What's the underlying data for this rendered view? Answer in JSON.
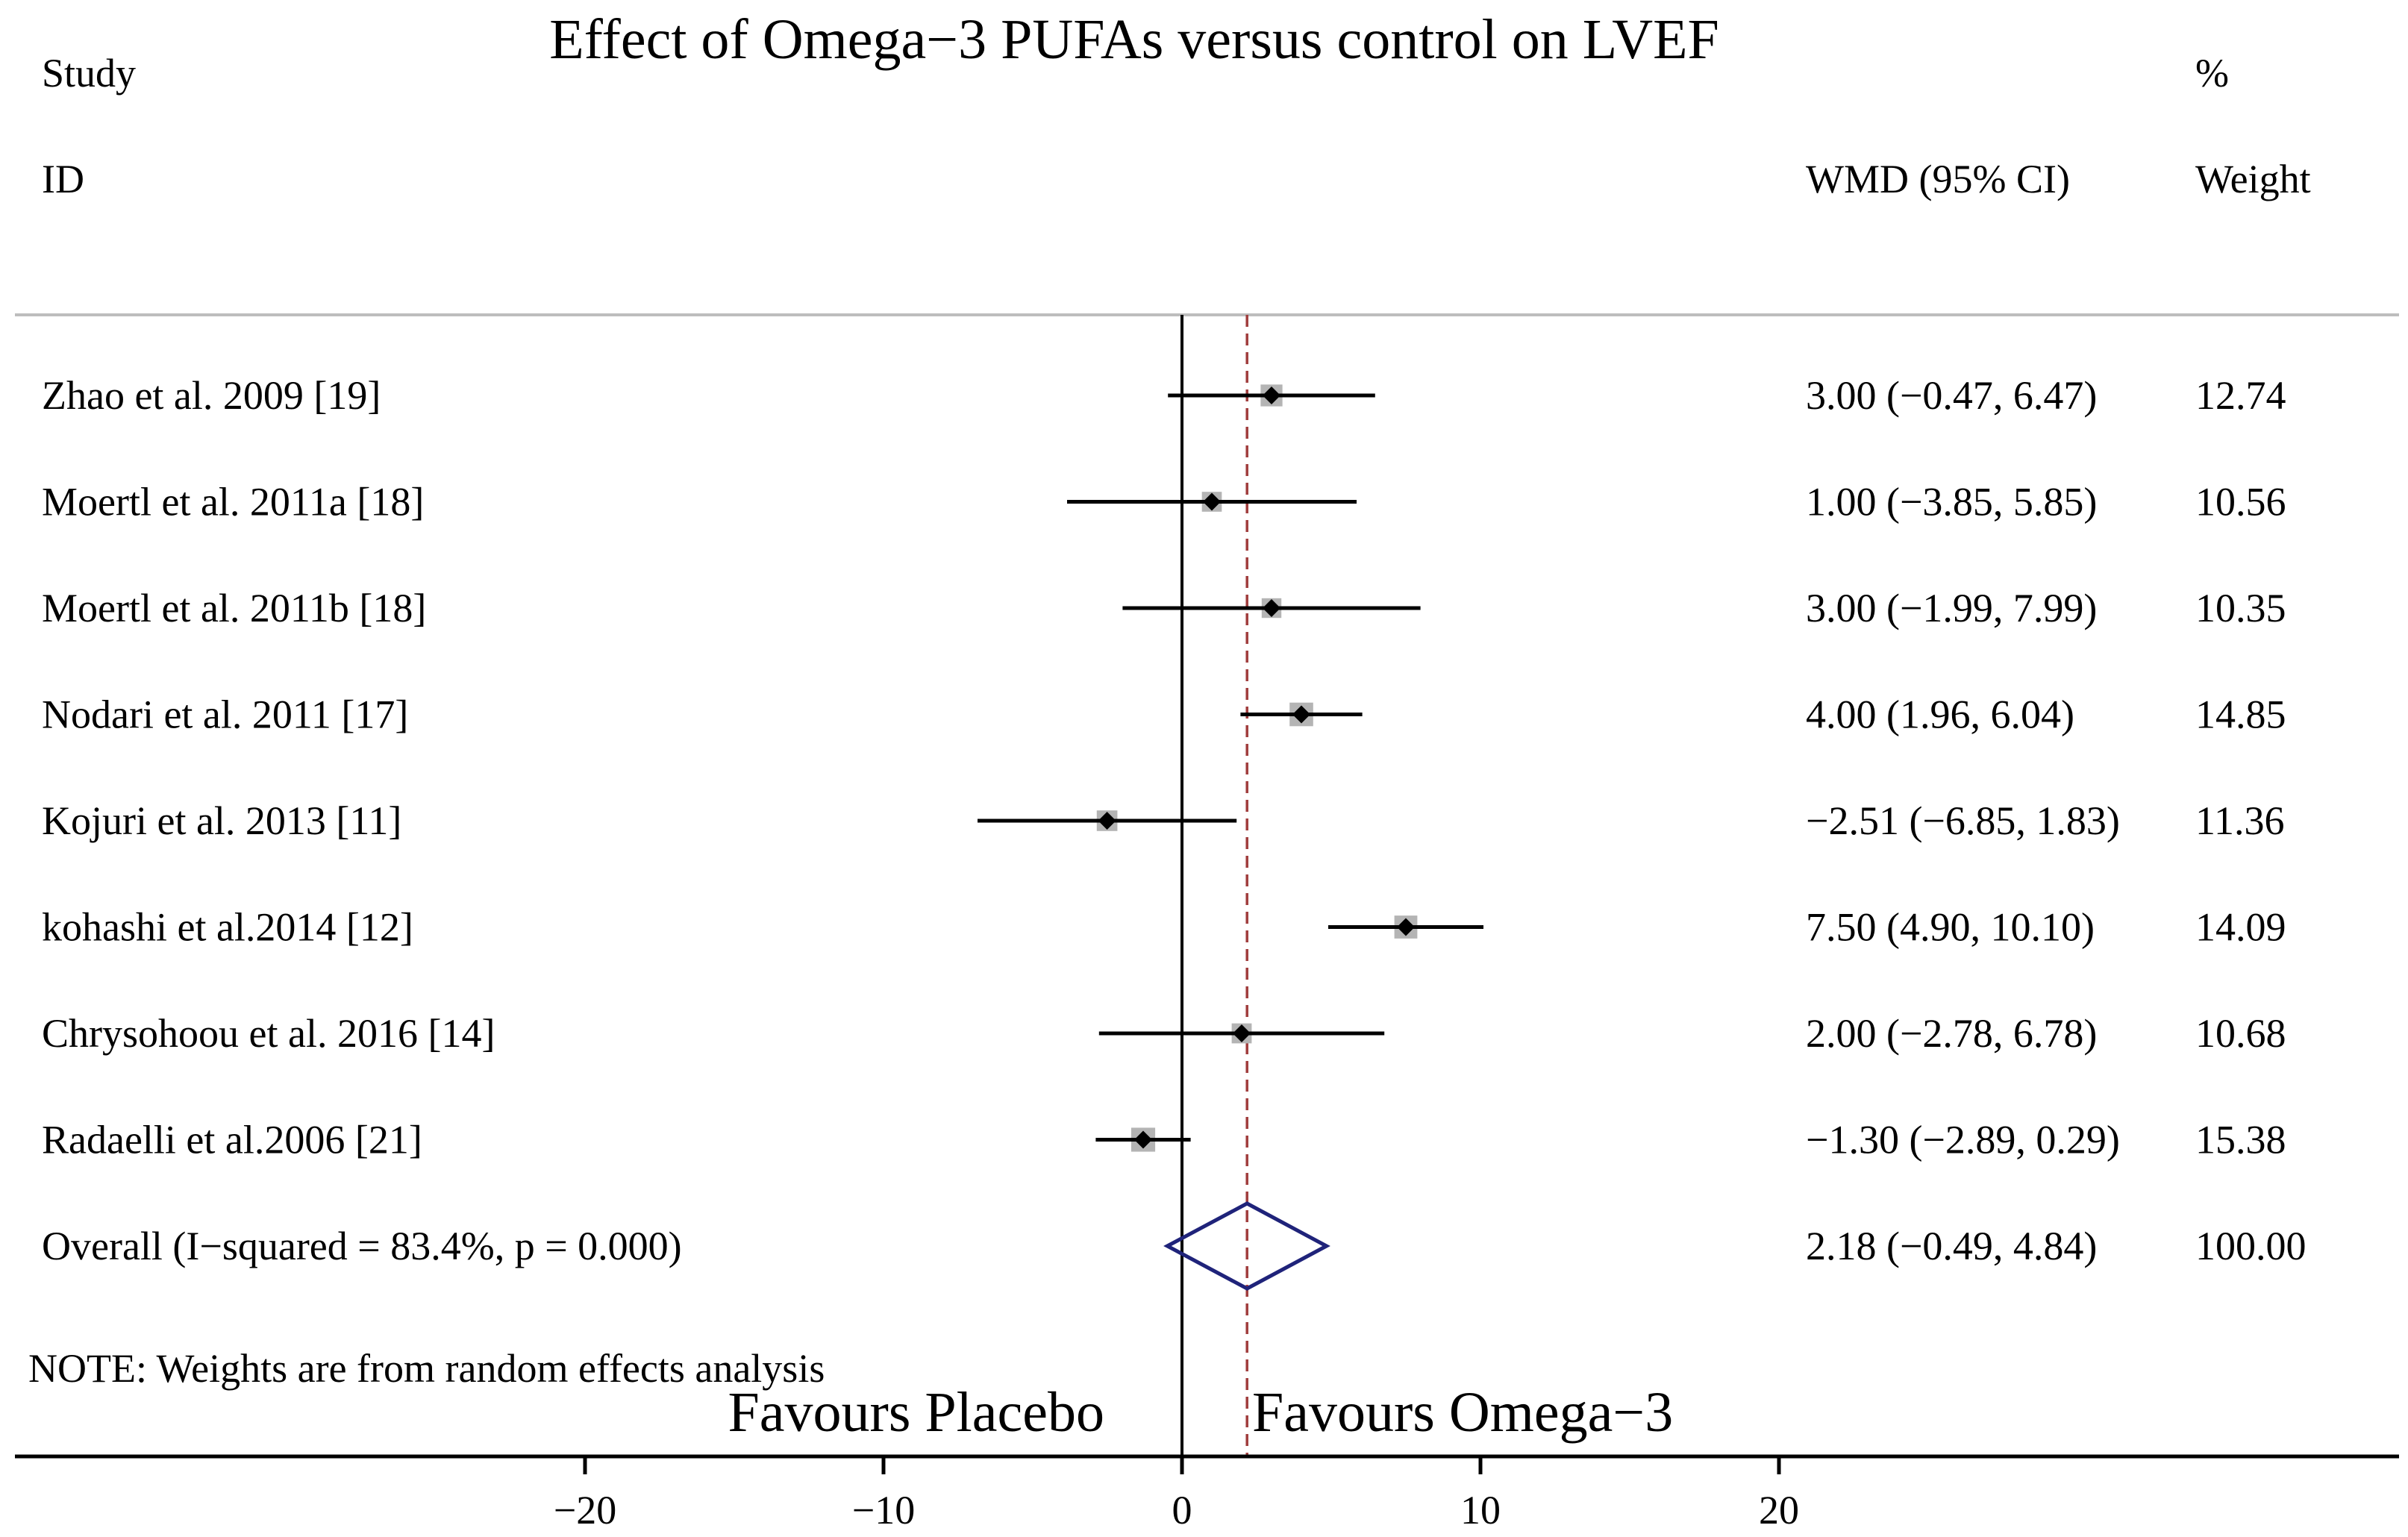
{
  "chart_data": {
    "type": "forest",
    "title": "Effect of Omega−3 PUFAs versus control on LVEF",
    "header": {
      "study_line1": "Study",
      "study_line2": "ID",
      "effect_label": "WMD (95% CI)",
      "weight_line1": "%",
      "weight_line2": "Weight"
    },
    "studies": [
      {
        "label": "Zhao et al. 2009 [19]",
        "estimate": 3.0,
        "lower": -0.47,
        "upper": 6.47,
        "ci_text": "3.00 (−0.47, 6.47)",
        "weight": 12.74,
        "weight_text": "12.74"
      },
      {
        "label": "Moertl et al. 2011a [18]",
        "estimate": 1.0,
        "lower": -3.85,
        "upper": 5.85,
        "ci_text": "1.00 (−3.85, 5.85)",
        "weight": 10.56,
        "weight_text": "10.56"
      },
      {
        "label": "Moertl et al. 2011b [18]",
        "estimate": 3.0,
        "lower": -1.99,
        "upper": 7.99,
        "ci_text": "3.00 (−1.99, 7.99)",
        "weight": 10.35,
        "weight_text": "10.35"
      },
      {
        "label": "Nodari et al. 2011 [17]",
        "estimate": 4.0,
        "lower": 1.96,
        "upper": 6.04,
        "ci_text": "4.00 (1.96, 6.04)",
        "weight": 14.85,
        "weight_text": "14.85"
      },
      {
        "label": "Kojuri et al. 2013 [11]",
        "estimate": -2.51,
        "lower": -6.85,
        "upper": 1.83,
        "ci_text": "−2.51 (−6.85, 1.83)",
        "weight": 11.36,
        "weight_text": "11.36"
      },
      {
        "label": "kohashi et al.2014 [12]",
        "estimate": 7.5,
        "lower": 4.9,
        "upper": 10.1,
        "ci_text": "7.50 (4.90, 10.10)",
        "weight": 14.09,
        "weight_text": "14.09"
      },
      {
        "label": "Chrysohoou et al. 2016 [14]",
        "estimate": 2.0,
        "lower": -2.78,
        "upper": 6.78,
        "ci_text": "2.00 (−2.78, 6.78)",
        "weight": 10.68,
        "weight_text": "10.68"
      },
      {
        "label": "Radaelli et al.2006 [21]",
        "estimate": -1.3,
        "lower": -2.89,
        "upper": 0.29,
        "ci_text": "−1.30 (−2.89, 0.29)",
        "weight": 15.38,
        "weight_text": "15.38"
      }
    ],
    "overall": {
      "label": "Overall  (I−squared = 83.4%, p = 0.000)",
      "estimate": 2.18,
      "lower": -0.49,
      "upper": 4.84,
      "ci_text": "2.18 (−0.49, 4.84)",
      "weight_text": "100.00"
    },
    "note": "NOTE: Weights are from random effects analysis",
    "favours_left": "Favours Placebo",
    "favours_right": "Favours Omega−3",
    "x_ticks": [
      -20,
      -10,
      0,
      10,
      20
    ],
    "x_tick_labels": [
      "−20",
      "−10",
      "0",
      "10",
      "20"
    ],
    "xlim": [
      -40,
      40
    ],
    "null_line": 0,
    "colors": {
      "text": "#000000",
      "separator": "#bdbdbd",
      "weight_box": "#b4b4b4",
      "point": "#000000",
      "ci_line": "#000000",
      "overall_line": "#a03c3c",
      "diamond": "#1f237a"
    }
  }
}
